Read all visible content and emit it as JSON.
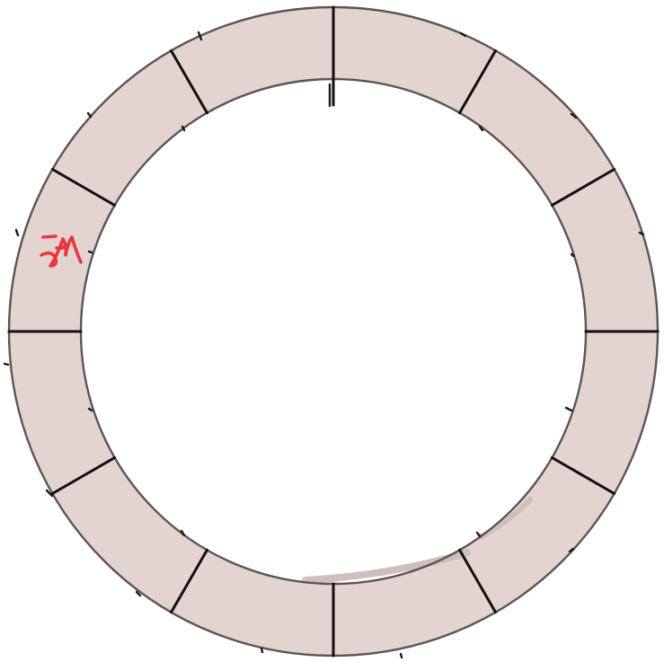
{
  "diagram": {
    "ring": {
      "segment_count": 12,
      "fill_color": "#e3d4d0",
      "outline_color": "#5a5656",
      "spoke_color": "#111111"
    },
    "annotation": {
      "text": "",
      "description": "red-scribble-mark",
      "color": "#e8373f"
    }
  }
}
